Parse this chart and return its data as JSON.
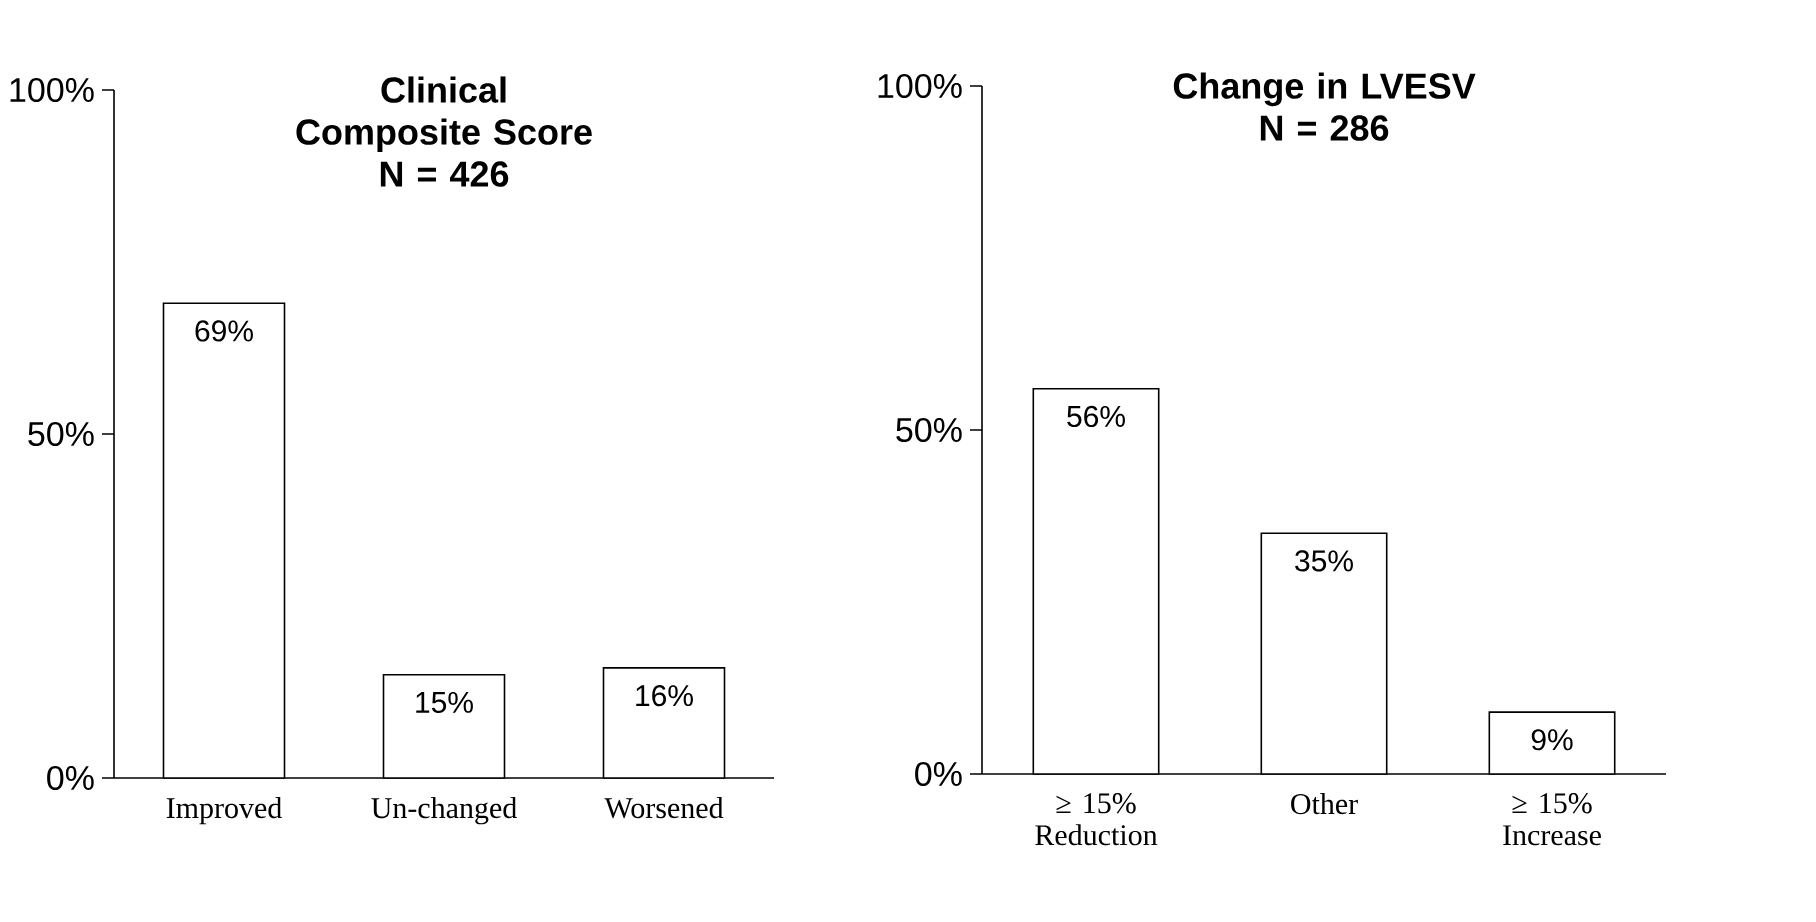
{
  "chart_data": [
    {
      "type": "bar",
      "title": "Clinical Composite Score",
      "subtitle": "N = 426",
      "categories": [
        "Improved",
        "Un-changed",
        "Worsened"
      ],
      "values": [
        69,
        15,
        16
      ],
      "value_labels": [
        "69%",
        "15%",
        "16%"
      ],
      "color": "#ffffff",
      "ylim": [
        0,
        100
      ],
      "yticks": [
        {
          "value": 0,
          "label": "0%"
        },
        {
          "value": 50,
          "label": "50%"
        },
        {
          "value": 100,
          "label": "100%"
        }
      ]
    },
    {
      "type": "bar",
      "title": "Change in LVESV",
      "subtitle": "N = 286",
      "categories": [
        "≥ 15% Reduction",
        "Other",
        "≥ 15% Increase"
      ],
      "values": [
        56,
        35,
        9
      ],
      "value_labels": [
        "56%",
        "35%",
        "9%"
      ],
      "color": "#ffffff",
      "ylim": [
        0,
        100
      ],
      "yticks": [
        {
          "value": 0,
          "label": "0%"
        },
        {
          "value": 50,
          "label": "50%"
        },
        {
          "value": 100,
          "label": "100%"
        }
      ]
    }
  ]
}
